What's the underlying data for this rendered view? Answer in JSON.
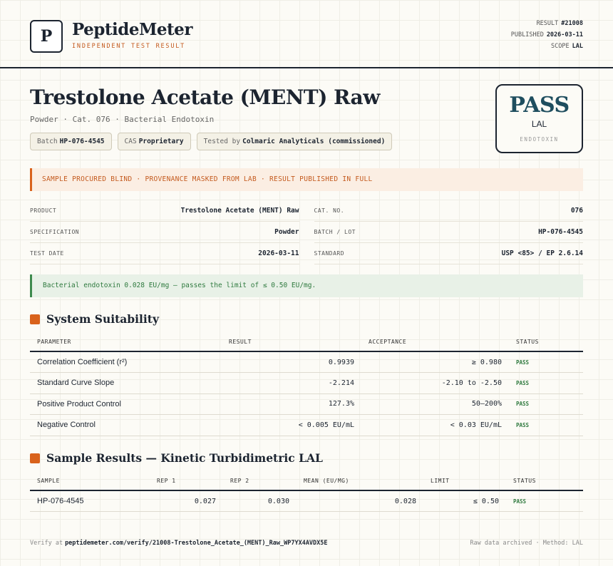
{
  "brand": {
    "logo": "P",
    "name": "PeptideMeter",
    "tagline": "INDEPENDENT TEST RESULT"
  },
  "meta": [
    {
      "label": "RESULT",
      "value": "#21008"
    },
    {
      "label": "PUBLISHED",
      "value": "2026-03-11"
    },
    {
      "label": "SCOPE",
      "value": "LAL"
    }
  ],
  "title": "Trestolone Acetate (MENT) Raw",
  "subtitle": "Powder · Cat. 076 · Bacterial Endotoxin",
  "chips": [
    {
      "label": "Batch",
      "value": "HP-076-4545"
    },
    {
      "label": "CAS",
      "value": "Proprietary"
    },
    {
      "label": "Tested by",
      "value": "Colmaric Analyticals (commissioned)"
    }
  ],
  "badge": {
    "verdict": "PASS",
    "scope": "LAL",
    "test": "ENDOTOXIN"
  },
  "notice": "SAMPLE PROCURED BLIND · PROVENANCE MASKED FROM LAB · RESULT PUBLISHED IN FULL",
  "details": [
    [
      {
        "label": "PRODUCT",
        "value": "Trestolone Acetate (MENT) Raw"
      },
      {
        "label": "CAT. NO.",
        "value": "076"
      }
    ],
    [
      {
        "label": "SPECIFICATION",
        "value": "Powder"
      },
      {
        "label": "BATCH / LOT",
        "value": "HP-076-4545"
      }
    ],
    [
      {
        "label": "TEST DATE",
        "value": "2026-03-11"
      },
      {
        "label": "STANDARD",
        "value": "USP <85> / EP 2.6.14"
      }
    ]
  ],
  "summary": "Bacterial endotoxin 0.028 EU/mg — passes the limit of ≤ 0.50 EU/mg.",
  "suitability": {
    "title": "System Suitability",
    "headers": [
      "PARAMETER",
      "RESULT",
      "ACCEPTANCE",
      "STATUS"
    ],
    "rows": [
      [
        "Correlation Coefficient (r²)",
        "0.9939",
        "≥ 0.980",
        "PASS"
      ],
      [
        "Standard Curve Slope",
        "-2.214",
        "-2.10 to -2.50",
        "PASS"
      ],
      [
        "Positive Product Control",
        "127.3%",
        "50–200%",
        "PASS"
      ],
      [
        "Negative Control",
        "< 0.005 EU/mL",
        "< 0.03 EU/mL",
        "PASS"
      ]
    ]
  },
  "samples": {
    "title": "Sample Results — Kinetic Turbidimetric LAL",
    "headers": [
      "SAMPLE",
      "REP 1",
      "REP 2",
      "MEAN (EU/MG)",
      "LIMIT",
      "STATUS"
    ],
    "rows": [
      [
        "HP-076-4545",
        "0.027",
        "0.030",
        "0.028",
        "≤ 0.50",
        "PASS"
      ]
    ]
  },
  "footer": {
    "verify_label": "Verify at",
    "verify_url": "peptidemeter.com/verify/21008-Trestolone_Acetate_(MENT)_Raw_WP7YX4AVDX5E",
    "note": "Raw data archived · Method: LAL"
  }
}
